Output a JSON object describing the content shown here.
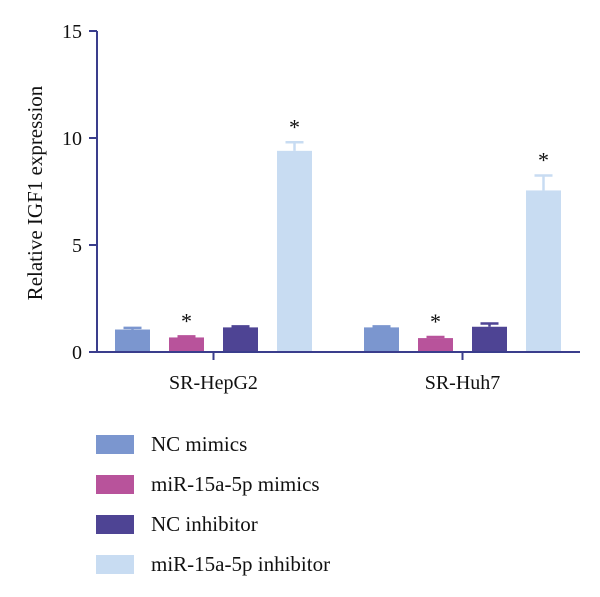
{
  "chart_data": {
    "type": "bar",
    "title": "",
    "xlabel": "",
    "ylabel": "Relative IGF1 expression",
    "ylim": [
      0,
      15
    ],
    "yticks": [
      0,
      5,
      10,
      15
    ],
    "categories": [
      "SR-HepG2",
      "SR-Huh7"
    ],
    "series": [
      {
        "name": "NC mimics",
        "color": "#7b96cf",
        "values": [
          1.05,
          1.15
        ],
        "errors": [
          0.08,
          0.05
        ],
        "significant": [
          false,
          false
        ]
      },
      {
        "name": "miR-15a-5p mimics",
        "color": "#b8539b",
        "values": [
          0.68,
          0.65
        ],
        "errors": [
          0.05,
          0.05
        ],
        "significant": [
          true,
          true
        ]
      },
      {
        "name": "NC inhibitor",
        "color": "#4e4494",
        "values": [
          1.15,
          1.18
        ],
        "errors": [
          0.05,
          0.15
        ],
        "significant": [
          false,
          false
        ]
      },
      {
        "name": "miR-15a-5p inhibitor",
        "color": "#c8dcf2",
        "values": [
          9.4,
          7.55
        ],
        "errors": [
          0.4,
          0.7
        ],
        "significant": [
          true,
          true
        ]
      }
    ],
    "significance_marker": "*",
    "legend_position": "bottom-left",
    "grid": false
  }
}
